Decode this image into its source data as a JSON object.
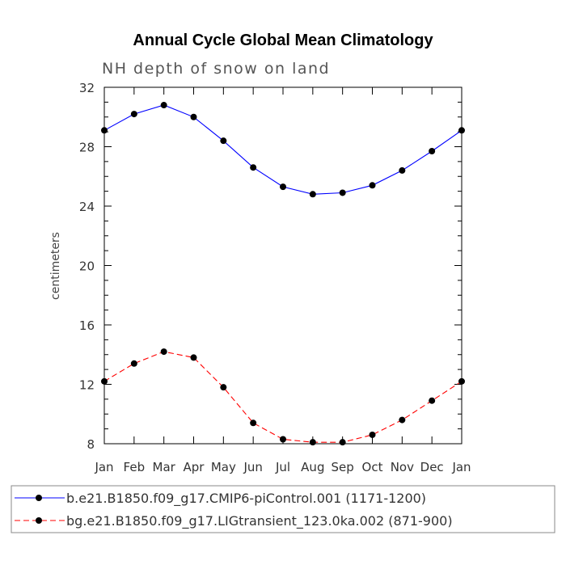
{
  "chart_data": {
    "type": "line",
    "title": "Annual Cycle Global Mean Climatology",
    "subtitle": "NH depth of snow on land",
    "xlabel": "",
    "ylabel": "centimeters",
    "categories": [
      "Jan",
      "Feb",
      "Mar",
      "Apr",
      "May",
      "Jun",
      "Jul",
      "Aug",
      "Sep",
      "Oct",
      "Nov",
      "Dec",
      "Jan"
    ],
    "ylim": [
      8,
      32
    ],
    "yticks": [
      8,
      12,
      16,
      20,
      24,
      28,
      32
    ],
    "grid": false,
    "legend_position": "bottom",
    "series": [
      {
        "name": "b.e21.B1850.f09_g17.CMIP6-piControl.001 (1171-1200)",
        "color": "#0000ff",
        "line_style": "solid",
        "marker": "filled-circle",
        "values": [
          29.1,
          30.2,
          30.8,
          30.0,
          28.4,
          26.6,
          25.3,
          24.8,
          24.9,
          25.4,
          26.4,
          27.7,
          29.1
        ]
      },
      {
        "name": "bg.e21.B1850.f09_g17.LIGtransient_123.0ka.002 (871-900)",
        "color": "#ff0000",
        "line_style": "dashed",
        "marker": "filled-circle",
        "values": [
          12.2,
          13.4,
          14.2,
          13.8,
          11.8,
          9.4,
          8.3,
          8.1,
          8.1,
          8.6,
          9.6,
          10.9,
          12.2
        ]
      }
    ]
  }
}
